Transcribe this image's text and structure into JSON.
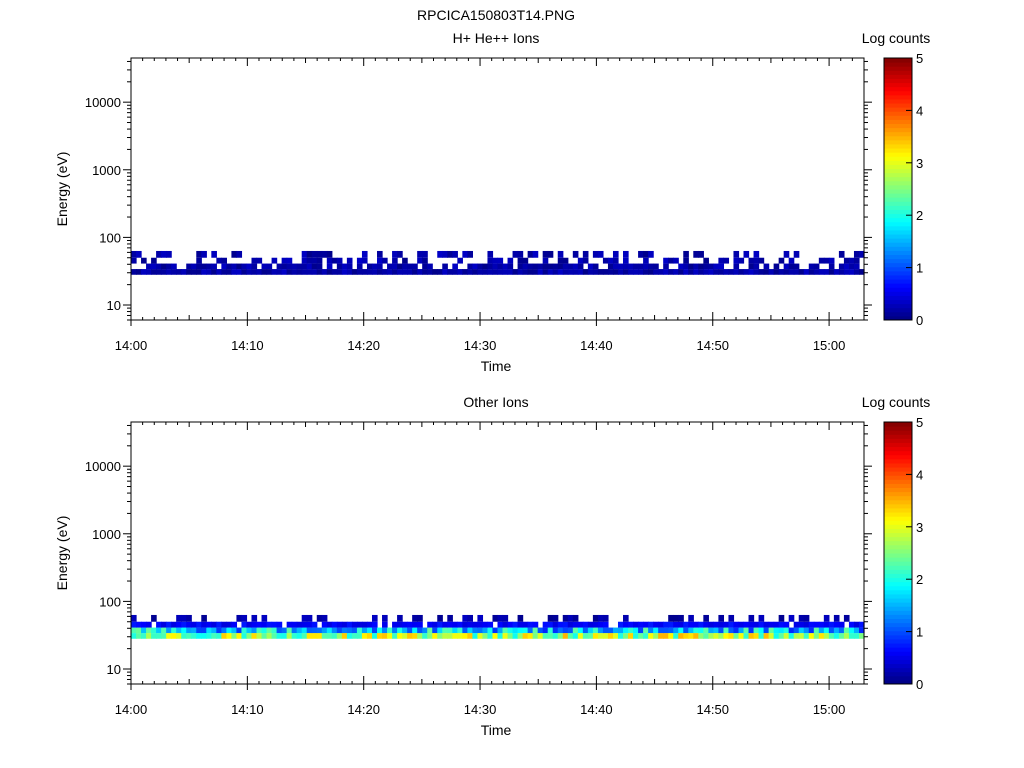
{
  "figure_title": "RPCICA150803T14.PNG",
  "chart_data": [
    {
      "type": "heatmap",
      "title": "H+ He++ Ions",
      "xlabel": "Time",
      "ylabel": "Energy (eV)",
      "x_ticks": [
        "14:00",
        "14:10",
        "14:20",
        "14:30",
        "14:40",
        "14:50",
        "15:00"
      ],
      "x_range": [
        "14:00",
        "15:03"
      ],
      "y_scale": "log",
      "y_ticks": [
        10,
        100,
        1000,
        10000
      ],
      "y_tick_labels": [
        "10",
        "100",
        "1000",
        "10000"
      ],
      "ylim": [
        6,
        45000
      ],
      "colorbar": {
        "label": "Log counts",
        "ticks": [
          "0",
          "1",
          "2",
          "3",
          "4",
          "5"
        ],
        "range": [
          0,
          5
        ],
        "colormap": "jet"
      },
      "bands": [
        {
          "energy_range_eV": [
            28,
            34
          ],
          "log_counts": 0.2,
          "coverage": 1.0
        },
        {
          "energy_range_eV": [
            34,
            41
          ],
          "log_counts": 0.2,
          "coverage": 0.8
        },
        {
          "energy_range_eV": [
            41,
            50
          ],
          "log_counts": 0.2,
          "coverage": 0.5
        },
        {
          "energy_range_eV": [
            50,
            63
          ],
          "log_counts": 0.2,
          "coverage": 0.4
        }
      ]
    },
    {
      "type": "heatmap",
      "title": "Other Ions",
      "xlabel": "Time",
      "ylabel": "Energy (eV)",
      "x_ticks": [
        "14:00",
        "14:10",
        "14:20",
        "14:30",
        "14:40",
        "14:50",
        "15:00"
      ],
      "x_range": [
        "14:00",
        "15:03"
      ],
      "y_scale": "log",
      "y_ticks": [
        10,
        100,
        1000,
        10000
      ],
      "y_tick_labels": [
        "10",
        "100",
        "1000",
        "10000"
      ],
      "ylim": [
        6,
        45000
      ],
      "colorbar": {
        "label": "Log counts",
        "ticks": [
          "0",
          "1",
          "2",
          "3",
          "4",
          "5"
        ],
        "range": [
          0,
          5
        ],
        "colormap": "jet"
      },
      "bands": [
        {
          "energy_range_eV": [
            28,
            34
          ],
          "log_counts": 2.7,
          "coverage": 1.0
        },
        {
          "energy_range_eV": [
            34,
            41
          ],
          "log_counts": 1.6,
          "coverage": 1.0
        },
        {
          "energy_range_eV": [
            41,
            50
          ],
          "log_counts": 0.6,
          "coverage": 0.9
        },
        {
          "energy_range_eV": [
            50,
            63
          ],
          "log_counts": 0.2,
          "coverage": 0.4
        }
      ]
    }
  ]
}
